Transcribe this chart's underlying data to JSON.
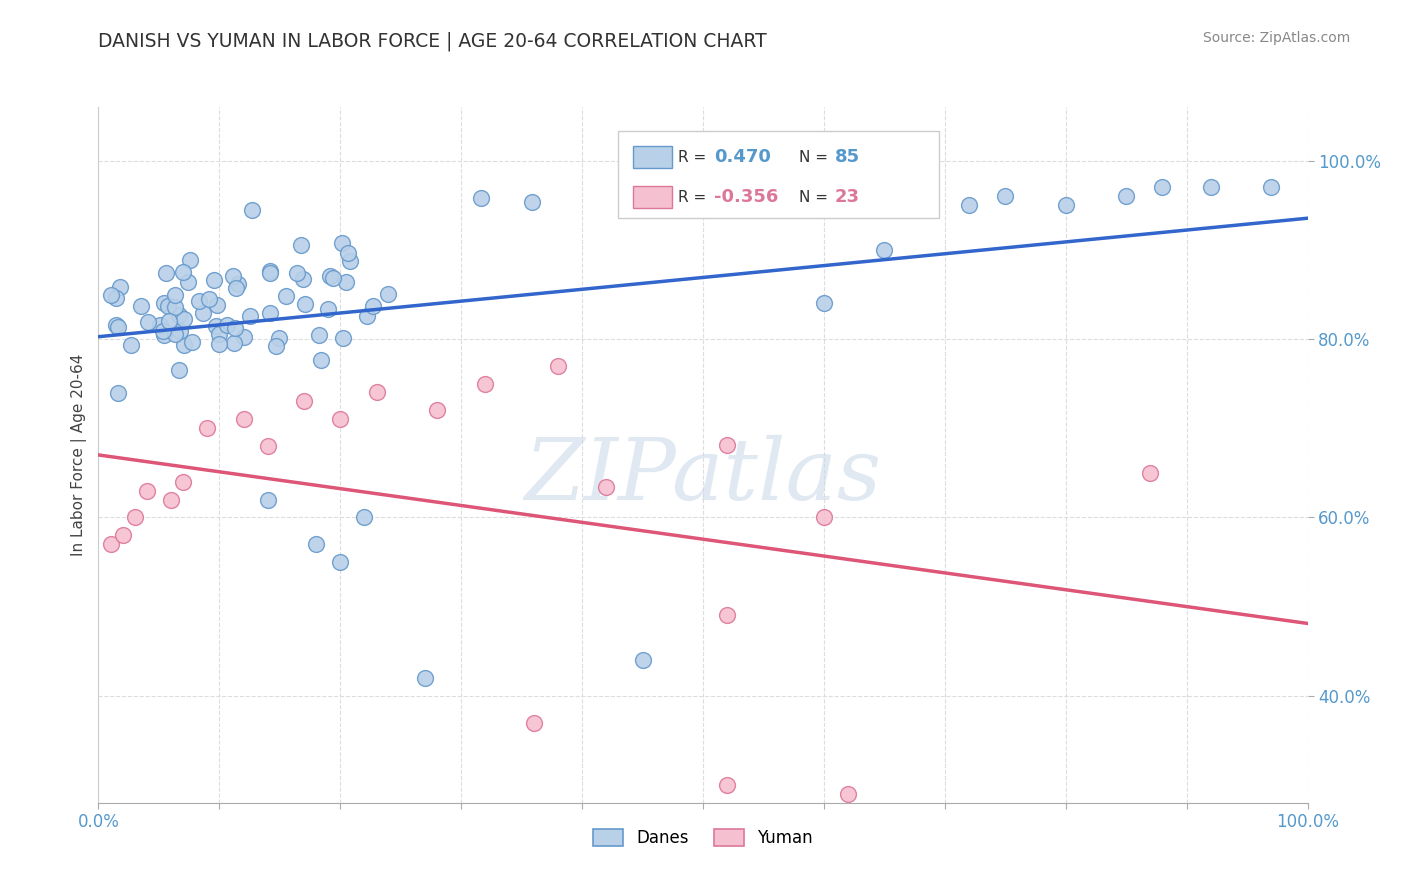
{
  "title": "DANISH VS YUMAN IN LABOR FORCE | AGE 20-64 CORRELATION CHART",
  "source_text": "Source: ZipAtlas.com",
  "ylabel": "In Labor Force | Age 20-64",
  "xlim": [
    0.0,
    1.0
  ],
  "ylim": [
    0.28,
    1.06
  ],
  "danish_R": 0.47,
  "danish_N": 85,
  "yuman_R": -0.356,
  "yuman_N": 23,
  "danish_color": "#b8d0e8",
  "danish_edge_color": "#6699cc",
  "yuman_color": "#f5c0d0",
  "yuman_edge_color": "#dd7799",
  "danish_line_color": "#3366cc",
  "yuman_line_color": "#dd5577",
  "watermark": "ZIPatlas",
  "background_color": "#ffffff",
  "grid_color": "#dddddd",
  "ytick_color": "#5599cc",
  "xtick_color": "#5599cc",
  "title_color": "#333333",
  "source_color": "#888888",
  "ylabel_color": "#444444"
}
